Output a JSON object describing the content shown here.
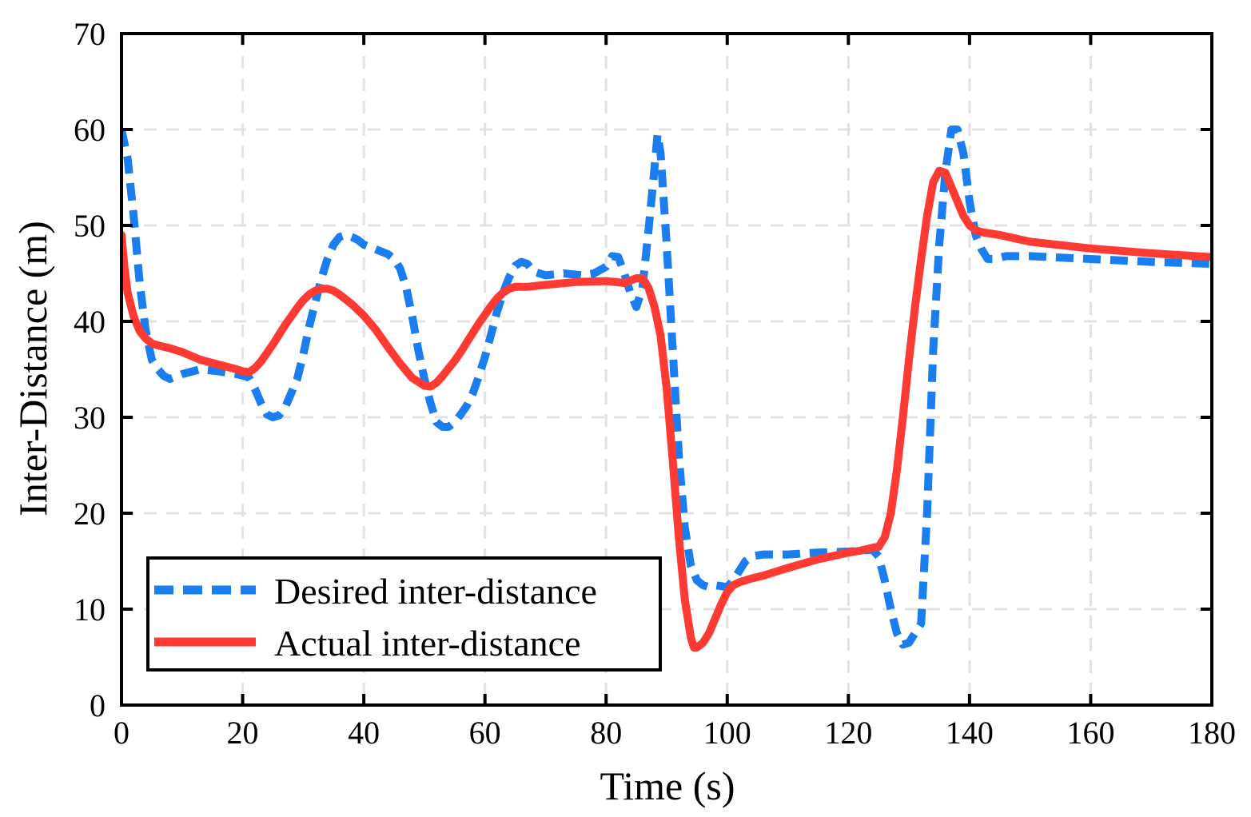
{
  "chart_data": {
    "type": "line",
    "title": "",
    "xlabel": "Time (s)",
    "ylabel": "Inter-Distance (m)",
    "xlim": [
      0,
      180
    ],
    "ylim": [
      0,
      70
    ],
    "xticks": [
      0,
      20,
      40,
      60,
      80,
      100,
      120,
      140,
      160,
      180
    ],
    "yticks": [
      0,
      10,
      20,
      30,
      40,
      50,
      60,
      70
    ],
    "grid": true,
    "legend_position": "bottom-left",
    "series": [
      {
        "name": "Desired inter-distance",
        "color": "#1a7ef0",
        "style": "dashed",
        "x": [
          0,
          1,
          2,
          3,
          4,
          5,
          6,
          7,
          8,
          10,
          13,
          16,
          19,
          21,
          22,
          23,
          24,
          25,
          26,
          27,
          28,
          29,
          30,
          31,
          32,
          33,
          34,
          35,
          36,
          37,
          38,
          39,
          40,
          42,
          44,
          45,
          46,
          47,
          48,
          49,
          50,
          51,
          52,
          53,
          54,
          55,
          56,
          57,
          58,
          59,
          60,
          61,
          62,
          63,
          64,
          65,
          66,
          67,
          68,
          70,
          73,
          76,
          78,
          80,
          81,
          82,
          83,
          84,
          85,
          86,
          87,
          88,
          88.5,
          89,
          90,
          91,
          92,
          93,
          94,
          95,
          96,
          97,
          98,
          99,
          100,
          101,
          102,
          103,
          104,
          106,
          110,
          115,
          120,
          122,
          124,
          125,
          126,
          127,
          128,
          129,
          130,
          131,
          132,
          133,
          134,
          135,
          136,
          137,
          138,
          139,
          140,
          141,
          142,
          143,
          144,
          146,
          150,
          160,
          170,
          180
        ],
        "values": [
          60,
          57,
          51,
          44,
          39,
          36,
          35,
          34.3,
          34,
          34.5,
          35,
          34.8,
          34.5,
          34.2,
          33,
          31.5,
          30.3,
          30,
          30.2,
          31,
          32.5,
          34,
          36.5,
          39.5,
          42,
          44.5,
          46.5,
          48,
          48.8,
          49,
          48.8,
          48.5,
          48,
          47.5,
          47,
          46.5,
          45.5,
          43.5,
          40.5,
          37,
          34,
          31.5,
          29.5,
          29,
          29,
          29.5,
          30.3,
          31.2,
          32.5,
          34.3,
          36.3,
          38.6,
          41,
          43,
          44.6,
          45.8,
          46.2,
          46,
          45.2,
          44.8,
          45,
          44.8,
          45,
          45.7,
          46.8,
          46.7,
          45,
          43,
          41.5,
          43.5,
          49.5,
          56,
          59.5,
          57.5,
          48,
          37,
          26,
          18.5,
          14.5,
          13,
          12.5,
          12.3,
          12.5,
          12.4,
          12.3,
          13,
          14,
          15,
          15.5,
          15.7,
          15.7,
          15.9,
          16,
          16.1,
          16.2,
          15.5,
          13,
          10,
          7.5,
          6.3,
          6.5,
          7.5,
          8.5,
          20,
          37,
          48,
          55.5,
          60,
          60,
          57.5,
          52.5,
          49,
          47.5,
          46.5,
          46.5,
          46.8,
          46.8,
          46.5,
          46.2,
          46
        ]
      },
      {
        "name": "Actual inter-distance",
        "color": "#ff3a33",
        "style": "solid",
        "x": [
          0,
          0.5,
          1,
          2,
          3,
          4,
          5,
          6,
          8,
          10,
          13,
          16,
          19,
          20,
          21,
          22,
          23,
          24,
          25,
          26,
          27,
          28,
          29,
          30,
          31,
          32,
          33,
          34,
          35,
          36,
          38,
          40,
          42,
          44,
          46,
          48,
          50,
          51,
          52,
          53,
          54,
          55,
          56,
          57,
          58,
          59,
          60,
          61,
          62,
          63,
          64,
          65,
          67,
          70,
          75,
          80,
          83,
          85,
          86,
          87,
          88,
          89,
          90,
          91,
          92,
          93,
          94,
          94.5,
          95,
          96,
          97,
          98,
          99,
          100,
          101,
          102,
          104,
          106,
          110,
          115,
          120,
          122,
          124,
          125,
          126,
          127,
          128,
          129,
          130,
          131,
          132,
          133,
          134,
          135,
          136,
          137,
          138,
          139,
          140,
          141,
          142,
          145,
          150,
          160,
          170,
          180
        ],
        "values": [
          49,
          45.5,
          43,
          40.5,
          39,
          38.2,
          37.7,
          37.5,
          37.2,
          36.8,
          36,
          35.5,
          35,
          34.8,
          34.7,
          35.1,
          35.8,
          36.7,
          37.6,
          38.6,
          39.6,
          40.5,
          41.4,
          42.2,
          42.8,
          43.2,
          43.4,
          43.4,
          43.2,
          42.8,
          41.8,
          40.6,
          39.1,
          37.3,
          35.6,
          34.1,
          33.3,
          33.2,
          33.6,
          34.3,
          35.1,
          35.9,
          36.8,
          37.8,
          38.8,
          39.8,
          40.7,
          41.6,
          42.4,
          43,
          43.4,
          43.6,
          43.6,
          43.8,
          44.1,
          44.2,
          44,
          44.5,
          44.5,
          43.5,
          41.5,
          38.5,
          33,
          25.5,
          17.5,
          11,
          7,
          6,
          6,
          6.5,
          7.5,
          9,
          10.5,
          11.8,
          12.5,
          12.8,
          13.2,
          13.5,
          14.3,
          15.2,
          15.9,
          16.1,
          16.4,
          16.5,
          17.5,
          20,
          24.5,
          30,
          36,
          41.5,
          46.5,
          51,
          54.5,
          55.7,
          55.5,
          54,
          52.5,
          51,
          50,
          49.5,
          49.3,
          49,
          48.3,
          47.6,
          47.1,
          46.7
        ]
      }
    ]
  }
}
